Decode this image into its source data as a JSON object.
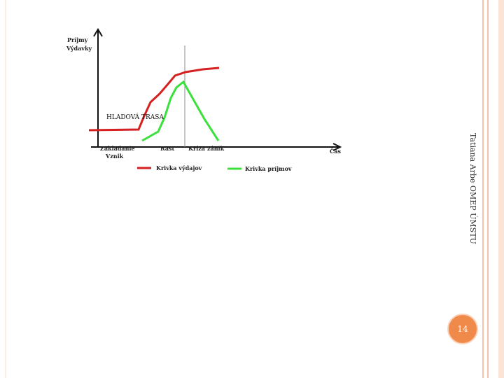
{
  "diagram": {
    "y_axis_label": [
      "Príjmy",
      "Výdavky"
    ],
    "annotation": "HLADOVÁ TRASA",
    "x_labels": [
      "Zakladanie",
      "Vznik",
      "Rast",
      "Kríza",
      "zánik"
    ],
    "x_axis_label": "Čas",
    "legend": [
      "Krivka výdajov",
      "Krivka príjmov"
    ]
  },
  "footer": {
    "author": "Tatiana Arbe OMEP ÚMSTU",
    "page_number": "14"
  }
}
